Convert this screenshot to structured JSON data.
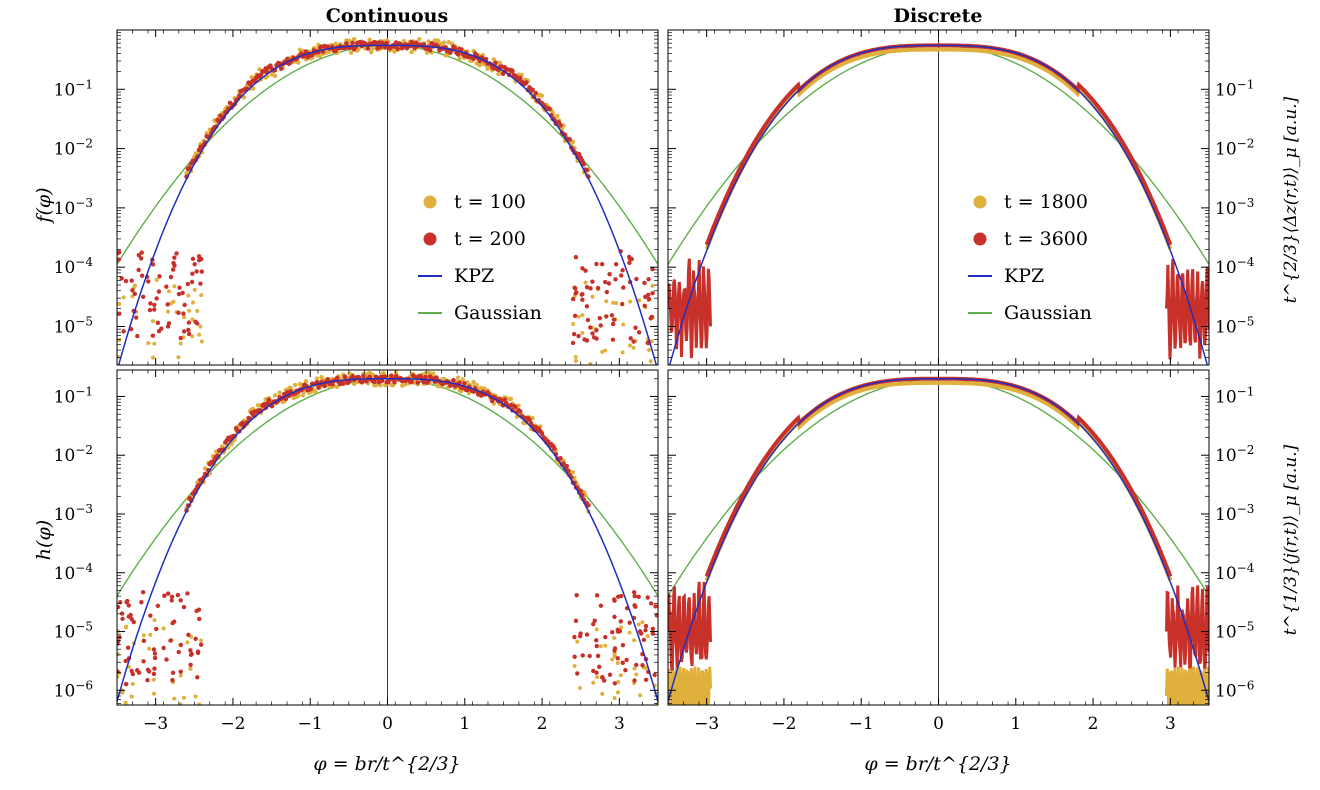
{
  "figure": {
    "column_titles": [
      "Continuous",
      "Discrete"
    ],
    "colors": {
      "early": "#e0b03c",
      "late": "#c8302a",
      "kpz": "#1f2fbf",
      "gaussian": "#5fae4e",
      "axes": "#000000"
    }
  },
  "chart_data": [
    {
      "type": "scatter",
      "panel": "top-left",
      "title": "Continuous",
      "xlabel": "",
      "ylabel": "f(φ)",
      "xlim": [
        -3.5,
        3.5
      ],
      "ylim_log10": [
        -5.65,
        0
      ],
      "x_ticks": [
        -3,
        -2,
        -1,
        0,
        1,
        2,
        3
      ],
      "y_ticks": [
        {
          "exp": -1,
          "label": "10^-1"
        },
        {
          "exp": -2,
          "label": "10^-2"
        },
        {
          "exp": -3,
          "label": "10^-3"
        },
        {
          "exp": -4,
          "label": "10^-4"
        },
        {
          "exp": -5,
          "label": "10^-5"
        }
      ],
      "legend": {
        "position": "center-right",
        "entries": [
          {
            "label": "t = 100",
            "kind": "dot",
            "series": "early"
          },
          {
            "label": "t = 200",
            "kind": "dot",
            "series": "late"
          },
          {
            "label": "KPZ",
            "kind": "line",
            "series": "kpz"
          },
          {
            "label": "Gaussian",
            "kind": "line",
            "series": "gaussian"
          }
        ]
      },
      "series": [
        {
          "name": "t = 100",
          "style": "dots"
        },
        {
          "name": "t = 200",
          "style": "dots"
        },
        {
          "name": "KPZ",
          "style": "line",
          "peak": 0.55
        },
        {
          "name": "Gaussian",
          "style": "line",
          "peak": 0.55
        }
      ]
    },
    {
      "type": "scatter",
      "panel": "top-right",
      "title": "Discrete",
      "xlabel": "",
      "ylabel": "t^{2/3}⟨Δz(r,t)⟩_μ [a.u.]",
      "xlim": [
        -3.5,
        3.5
      ],
      "ylim_log10": [
        -5.65,
        0
      ],
      "x_ticks": [
        -3,
        -2,
        -1,
        0,
        1,
        2,
        3
      ],
      "y_ticks": [
        {
          "exp": -1,
          "label": "10^-1"
        },
        {
          "exp": -2,
          "label": "10^-2"
        },
        {
          "exp": -3,
          "label": "10^-3"
        },
        {
          "exp": -4,
          "label": "10^-4"
        },
        {
          "exp": -5,
          "label": "10^-5"
        }
      ],
      "legend": {
        "position": "center-right",
        "entries": [
          {
            "label": "t = 1800",
            "kind": "dot",
            "series": "early"
          },
          {
            "label": "t = 3600",
            "kind": "dot",
            "series": "late"
          },
          {
            "label": "KPZ",
            "kind": "line",
            "series": "kpz"
          },
          {
            "label": "Gaussian",
            "kind": "line",
            "series": "gaussian"
          }
        ]
      },
      "series": [
        {
          "name": "t = 1800",
          "style": "dense"
        },
        {
          "name": "t = 3600",
          "style": "dense"
        },
        {
          "name": "KPZ",
          "style": "line",
          "peak": 0.55
        },
        {
          "name": "Gaussian",
          "style": "line",
          "peak": 0.55
        }
      ]
    },
    {
      "type": "scatter",
      "panel": "bottom-left",
      "title": "",
      "xlabel": "φ = br/t^{2/3}",
      "ylabel": "h(φ)",
      "xlim": [
        -3.5,
        3.5
      ],
      "ylim_log10": [
        -6.25,
        -0.55
      ],
      "x_ticks": [
        -3,
        -2,
        -1,
        0,
        1,
        2,
        3
      ],
      "y_ticks": [
        {
          "exp": -1,
          "label": "10^-1"
        },
        {
          "exp": -2,
          "label": "10^-2"
        },
        {
          "exp": -3,
          "label": "10^-3"
        },
        {
          "exp": -4,
          "label": "10^-4"
        },
        {
          "exp": -5,
          "label": "10^-5"
        },
        {
          "exp": -6,
          "label": "10^-6"
        }
      ],
      "series": [
        {
          "name": "t = 100",
          "style": "dots"
        },
        {
          "name": "t = 200",
          "style": "dots"
        },
        {
          "name": "KPZ",
          "style": "line",
          "peak": 0.2
        },
        {
          "name": "Gaussian",
          "style": "line",
          "peak": 0.2
        }
      ]
    },
    {
      "type": "scatter",
      "panel": "bottom-right",
      "title": "",
      "xlabel": "φ = br/t^{2/3}",
      "ylabel": "t^{1/3}⟨j(r,t)⟩_μ [a.u.]",
      "xlim": [
        -3.5,
        3.5
      ],
      "ylim_log10": [
        -6.25,
        -0.55
      ],
      "x_ticks": [
        -3,
        -2,
        -1,
        0,
        1,
        2,
        3
      ],
      "y_ticks": [
        {
          "exp": -1,
          "label": "10^-1"
        },
        {
          "exp": -2,
          "label": "10^-2"
        },
        {
          "exp": -3,
          "label": "10^-3"
        },
        {
          "exp": -4,
          "label": "10^-4"
        },
        {
          "exp": -5,
          "label": "10^-5"
        },
        {
          "exp": -6,
          "label": "10^-6"
        }
      ],
      "series": [
        {
          "name": "t = 1800",
          "style": "dense"
        },
        {
          "name": "t = 3600",
          "style": "dense"
        },
        {
          "name": "KPZ",
          "style": "line",
          "peak": 0.2
        },
        {
          "name": "Gaussian",
          "style": "line",
          "peak": 0.2
        }
      ]
    }
  ]
}
